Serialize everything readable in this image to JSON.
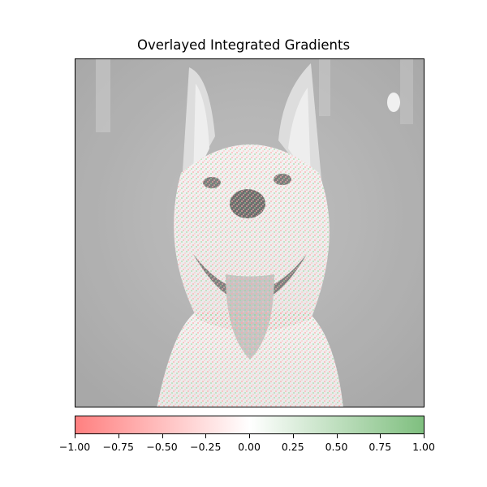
{
  "title": "Overlayed Integrated Gradients",
  "colorbar": {
    "ticks": [
      "−1.00",
      "−0.75",
      "−0.50",
      "−0.25",
      "0.00",
      "0.25",
      "0.50",
      "0.75",
      "1.00"
    ],
    "min": -1.0,
    "max": 1.0,
    "negative_color": "#ff8080",
    "neutral_color": "#ffffff",
    "positive_color": "#7fbf7f"
  },
  "image": {
    "subject": "grayscale photo of a dog with attribution overlay"
  }
}
